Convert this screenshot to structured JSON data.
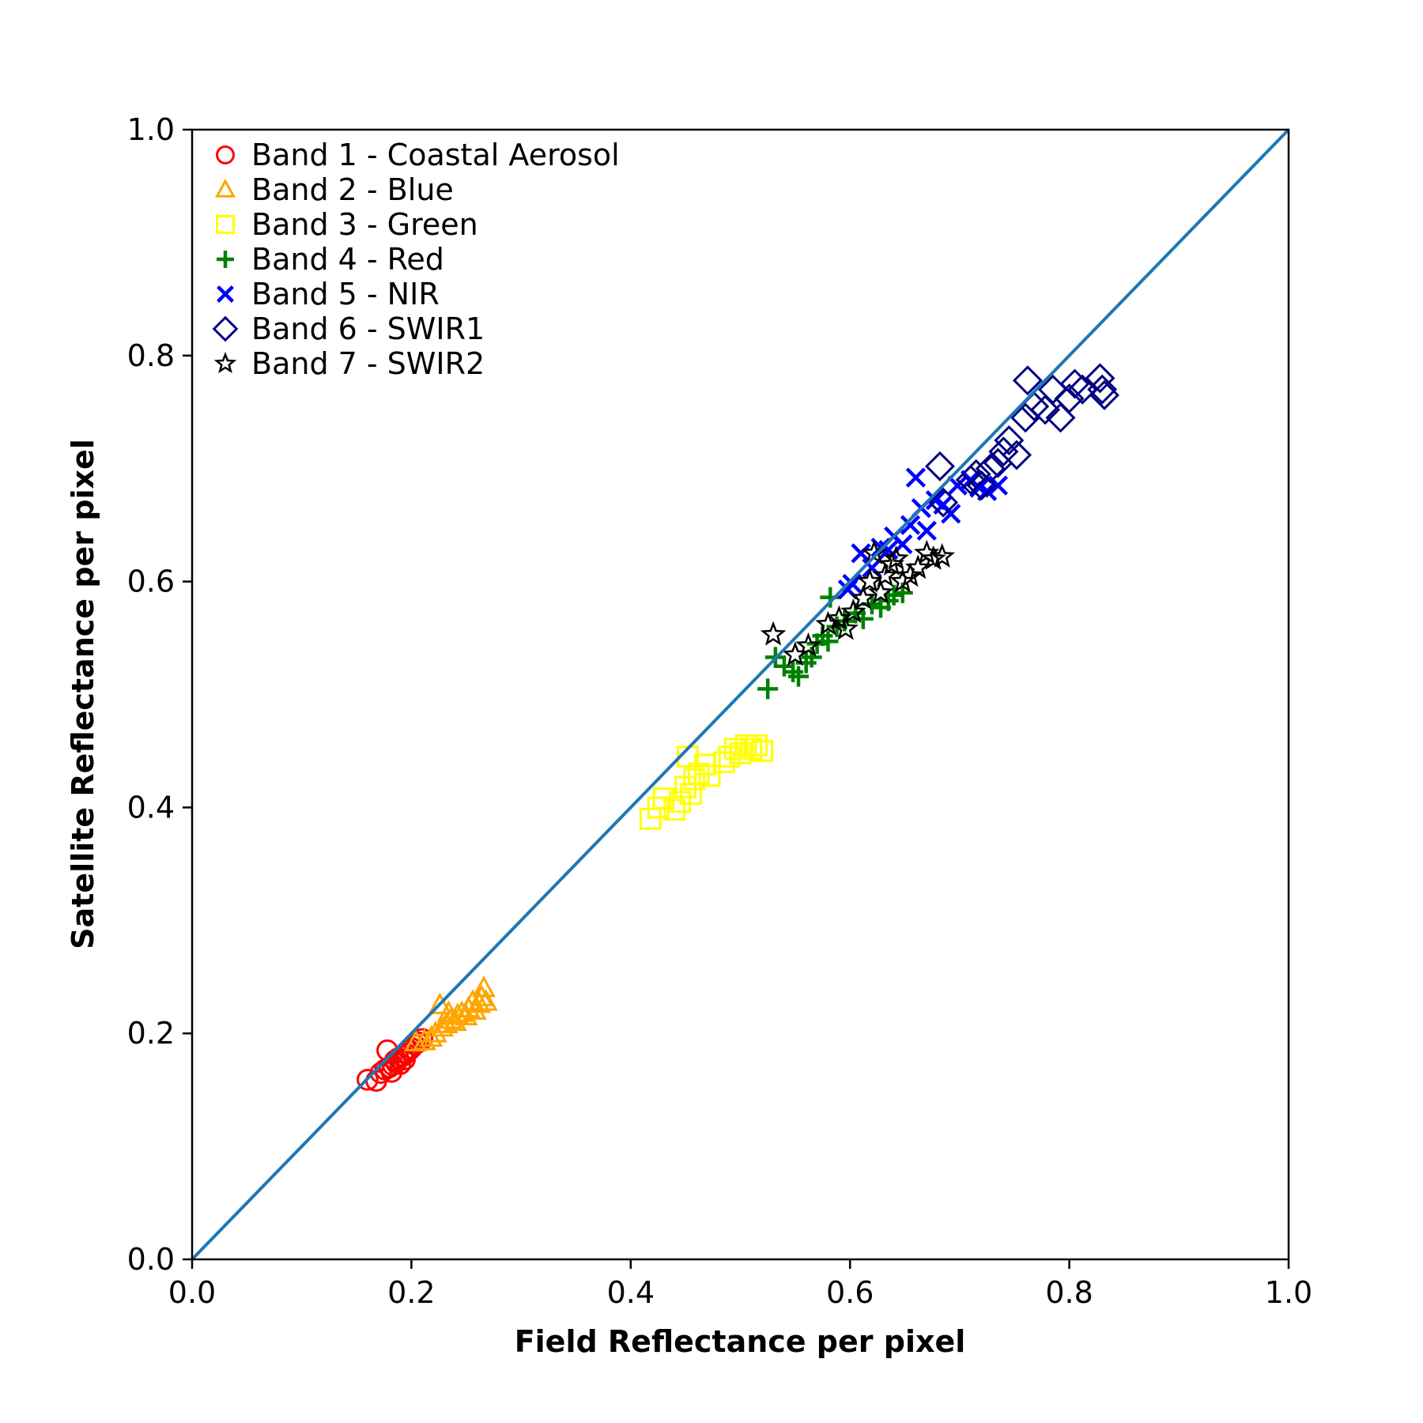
{
  "chart_data": {
    "type": "scatter",
    "xlabel": "Field Reflectance per pixel",
    "ylabel": "Satellite Reflectance per pixel",
    "xlim": [
      0.0,
      1.0
    ],
    "ylim": [
      0.0,
      1.0
    ],
    "xticks": [
      "0.0",
      "0.2",
      "0.4",
      "0.6",
      "0.8",
      "1.0"
    ],
    "yticks": [
      "0.0",
      "0.2",
      "0.4",
      "0.6",
      "0.8",
      "1.0"
    ],
    "grid": false,
    "legend_position": "upper-left",
    "reference_line": {
      "x": [
        0.0,
        1.0
      ],
      "y": [
        0.0,
        1.0
      ],
      "color": "#1f77b4"
    },
    "series": [
      {
        "name": "Band 1 - Coastal Aerosol",
        "marker": "circle",
        "color": "#ff0000",
        "points": [
          [
            0.16,
            0.159
          ],
          [
            0.168,
            0.158
          ],
          [
            0.172,
            0.165
          ],
          [
            0.176,
            0.168
          ],
          [
            0.178,
            0.185
          ],
          [
            0.18,
            0.17
          ],
          [
            0.183,
            0.172
          ],
          [
            0.185,
            0.176
          ],
          [
            0.188,
            0.178
          ],
          [
            0.19,
            0.173
          ],
          [
            0.192,
            0.18
          ],
          [
            0.195,
            0.182
          ],
          [
            0.198,
            0.185
          ],
          [
            0.2,
            0.187
          ],
          [
            0.203,
            0.19
          ],
          [
            0.206,
            0.192
          ],
          [
            0.21,
            0.195
          ],
          [
            0.186,
            0.174
          ],
          [
            0.194,
            0.177
          ],
          [
            0.182,
            0.166
          ]
        ]
      },
      {
        "name": "Band 2 - Blue",
        "marker": "triangle",
        "color": "#ffa500",
        "points": [
          [
            0.204,
            0.192
          ],
          [
            0.212,
            0.193
          ],
          [
            0.218,
            0.196
          ],
          [
            0.222,
            0.2
          ],
          [
            0.226,
            0.225
          ],
          [
            0.228,
            0.205
          ],
          [
            0.232,
            0.208
          ],
          [
            0.236,
            0.212
          ],
          [
            0.24,
            0.21
          ],
          [
            0.242,
            0.216
          ],
          [
            0.246,
            0.218
          ],
          [
            0.25,
            0.215
          ],
          [
            0.252,
            0.222
          ],
          [
            0.256,
            0.228
          ],
          [
            0.258,
            0.22
          ],
          [
            0.262,
            0.226
          ],
          [
            0.264,
            0.232
          ],
          [
            0.266,
            0.24
          ],
          [
            0.268,
            0.228
          ],
          [
            0.234,
            0.218
          ]
        ]
      },
      {
        "name": "Band 3 - Green",
        "marker": "square",
        "color": "#ffff00",
        "points": [
          [
            0.418,
            0.39
          ],
          [
            0.425,
            0.4
          ],
          [
            0.43,
            0.408
          ],
          [
            0.44,
            0.398
          ],
          [
            0.445,
            0.405
          ],
          [
            0.45,
            0.418
          ],
          [
            0.452,
            0.445
          ],
          [
            0.455,
            0.412
          ],
          [
            0.458,
            0.425
          ],
          [
            0.462,
            0.43
          ],
          [
            0.468,
            0.438
          ],
          [
            0.472,
            0.428
          ],
          [
            0.485,
            0.44
          ],
          [
            0.49,
            0.445
          ],
          [
            0.495,
            0.452
          ],
          [
            0.5,
            0.448
          ],
          [
            0.505,
            0.455
          ],
          [
            0.51,
            0.452
          ],
          [
            0.515,
            0.455
          ],
          [
            0.52,
            0.45
          ]
        ]
      },
      {
        "name": "Band 4 - Red",
        "marker": "plus",
        "color": "#008000",
        "points": [
          [
            0.525,
            0.505
          ],
          [
            0.532,
            0.533
          ],
          [
            0.54,
            0.525
          ],
          [
            0.548,
            0.52
          ],
          [
            0.553,
            0.516
          ],
          [
            0.56,
            0.528
          ],
          [
            0.565,
            0.533
          ],
          [
            0.57,
            0.545
          ],
          [
            0.575,
            0.552
          ],
          [
            0.58,
            0.547
          ],
          [
            0.582,
            0.586
          ],
          [
            0.588,
            0.56
          ],
          [
            0.595,
            0.565
          ],
          [
            0.605,
            0.572
          ],
          [
            0.612,
            0.567
          ],
          [
            0.62,
            0.58
          ],
          [
            0.628,
            0.577
          ],
          [
            0.635,
            0.583
          ],
          [
            0.64,
            0.588
          ],
          [
            0.648,
            0.59
          ]
        ]
      },
      {
        "name": "Band 5 - NIR",
        "marker": "x",
        "color": "#0000ff",
        "points": [
          [
            0.598,
            0.593
          ],
          [
            0.602,
            0.598
          ],
          [
            0.61,
            0.625
          ],
          [
            0.62,
            0.612
          ],
          [
            0.628,
            0.63
          ],
          [
            0.635,
            0.628
          ],
          [
            0.64,
            0.64
          ],
          [
            0.648,
            0.633
          ],
          [
            0.655,
            0.65
          ],
          [
            0.66,
            0.692
          ],
          [
            0.665,
            0.665
          ],
          [
            0.67,
            0.645
          ],
          [
            0.678,
            0.672
          ],
          [
            0.685,
            0.668
          ],
          [
            0.692,
            0.66
          ],
          [
            0.698,
            0.685
          ],
          [
            0.71,
            0.69
          ],
          [
            0.718,
            0.683
          ],
          [
            0.725,
            0.68
          ],
          [
            0.735,
            0.685
          ]
        ]
      },
      {
        "name": "Band 6 - SWIR1",
        "marker": "diamond",
        "color": "#000080",
        "points": [
          [
            0.685,
            0.67
          ],
          [
            0.682,
            0.702
          ],
          [
            0.71,
            0.69
          ],
          [
            0.715,
            0.695
          ],
          [
            0.72,
            0.685
          ],
          [
            0.728,
            0.7
          ],
          [
            0.735,
            0.705
          ],
          [
            0.74,
            0.715
          ],
          [
            0.745,
            0.725
          ],
          [
            0.752,
            0.712
          ],
          [
            0.76,
            0.745
          ],
          [
            0.762,
            0.778
          ],
          [
            0.768,
            0.755
          ],
          [
            0.778,
            0.752
          ],
          [
            0.785,
            0.77
          ],
          [
            0.792,
            0.745
          ],
          [
            0.8,
            0.762
          ],
          [
            0.805,
            0.775
          ],
          [
            0.812,
            0.77
          ],
          [
            0.828,
            0.78
          ],
          [
            0.83,
            0.77
          ],
          [
            0.832,
            0.765
          ]
        ]
      },
      {
        "name": "Band 7 - SWIR2",
        "marker": "star",
        "color": "#000000",
        "points": [
          [
            0.53,
            0.553
          ],
          [
            0.55,
            0.535
          ],
          [
            0.562,
            0.543
          ],
          [
            0.58,
            0.562
          ],
          [
            0.59,
            0.567
          ],
          [
            0.596,
            0.558
          ],
          [
            0.603,
            0.573
          ],
          [
            0.612,
            0.585
          ],
          [
            0.618,
            0.6
          ],
          [
            0.622,
            0.625
          ],
          [
            0.628,
            0.59
          ],
          [
            0.632,
            0.605
          ],
          [
            0.638,
            0.615
          ],
          [
            0.642,
            0.62
          ],
          [
            0.648,
            0.6
          ],
          [
            0.655,
            0.605
          ],
          [
            0.662,
            0.612
          ],
          [
            0.67,
            0.625
          ],
          [
            0.676,
            0.62
          ],
          [
            0.684,
            0.622
          ]
        ]
      }
    ]
  }
}
